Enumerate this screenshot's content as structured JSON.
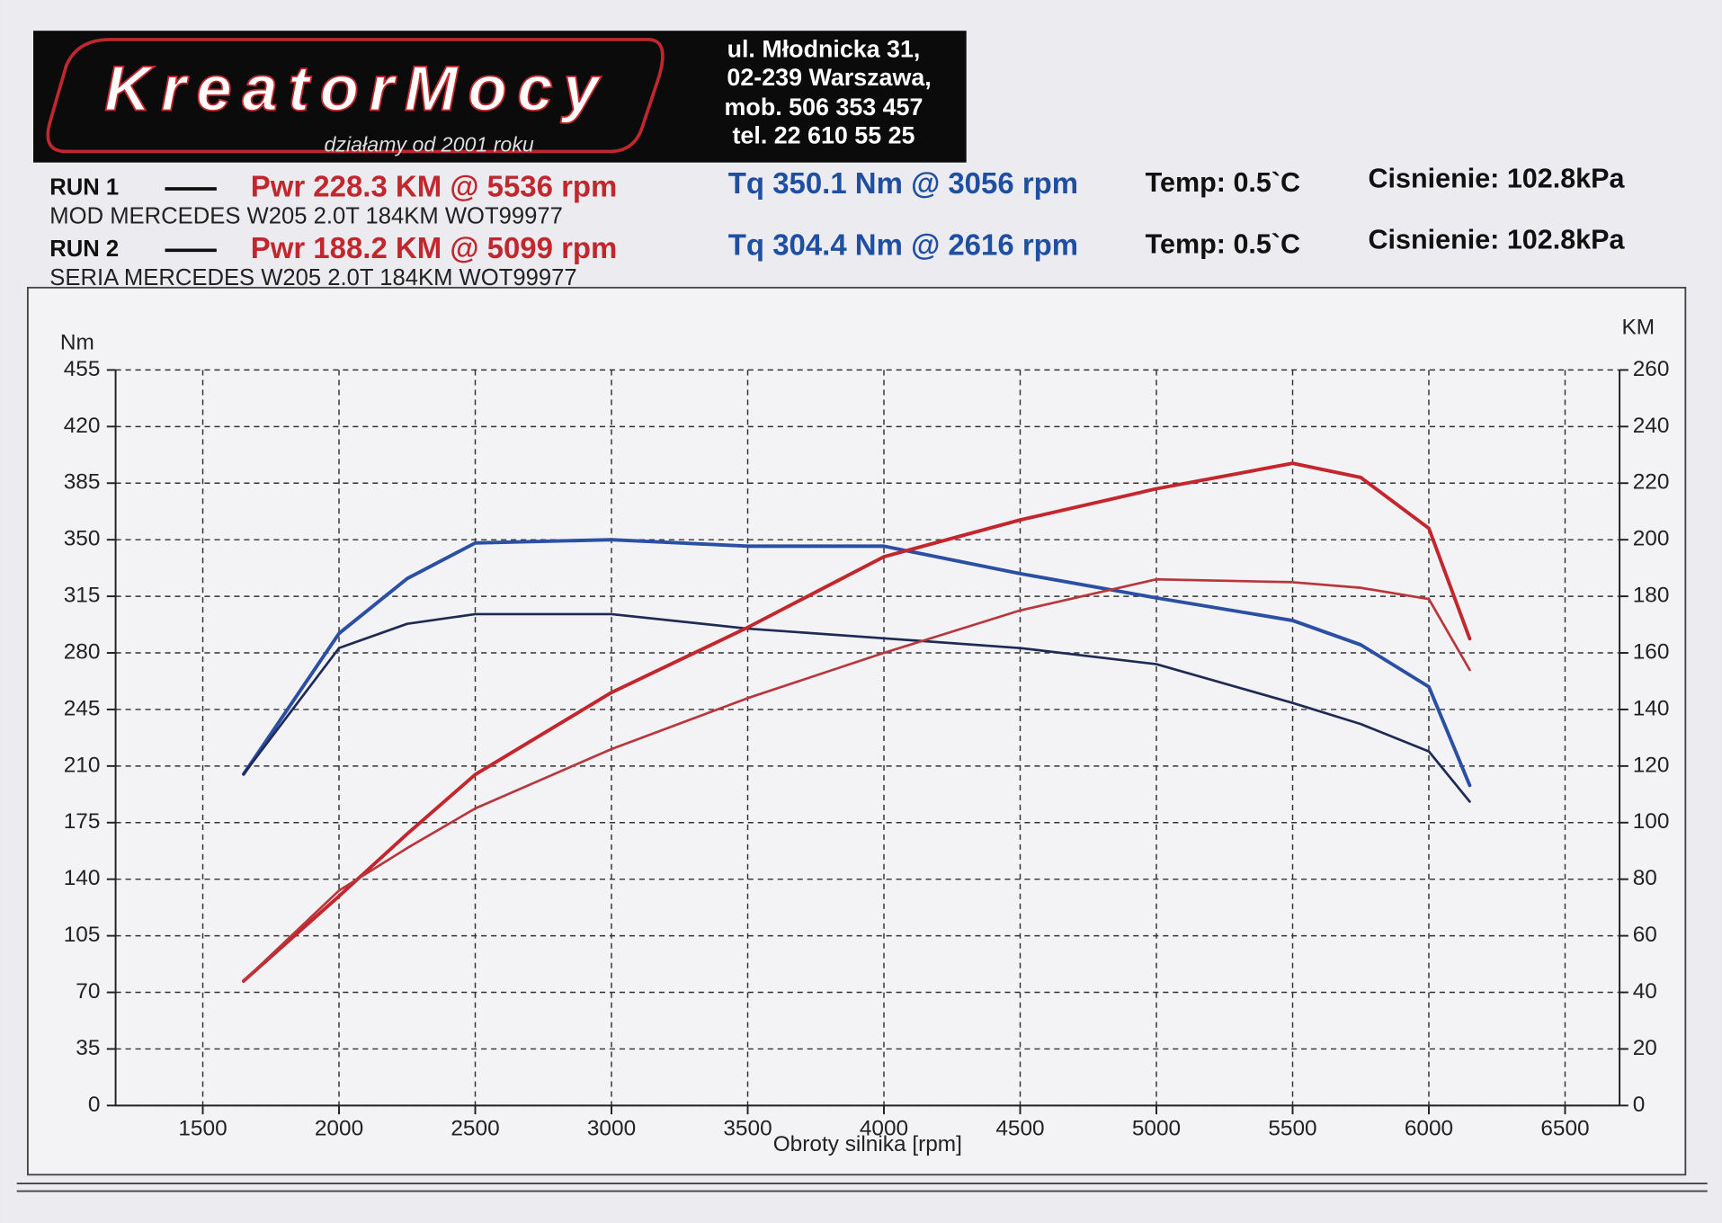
{
  "header": {
    "brand": "KreatorMocy",
    "tagline": "działamy od 2001 roku",
    "address": [
      "ul. Młodnicka 31,",
      "02-239  Warszawa,",
      "mob.  506 353 457",
      "tel.  22 610 55 25"
    ]
  },
  "runs": [
    {
      "label": "RUN 1",
      "power": "Pwr  228.3 KM @ 5536 rpm",
      "torque": "Tq 350.1 Nm @ 3056 rpm",
      "temp": "Temp: 0.5`C",
      "pressure": "Cisnienie: 102.8kPa",
      "description": "MOD MERCEDES W205 2.0T 184KM WOT99977"
    },
    {
      "label": "RUN 2",
      "power": "Pwr  188.2 KM @ 5099 rpm",
      "torque": "Tq 304.4 Nm @ 2616 rpm",
      "temp": "Temp: 0.5`C",
      "pressure": "Cisnienie: 102.8kPa",
      "description": "SERIA MERCEDES W205 2.0T 184KM WOT99977"
    }
  ],
  "chart_data": {
    "type": "line",
    "x_label": "Obroty silnika [rpm]",
    "y_label": "Nm",
    "y2_label": "KM",
    "x": [
      1650,
      2000,
      2250,
      2500,
      3000,
      3500,
      4000,
      4500,
      5000,
      5500,
      5750,
      6000,
      6150
    ],
    "series": [
      {
        "color": "#2b4fa3",
        "width": 3.2,
        "values": [
          205,
          292,
          326,
          348,
          350,
          346,
          346,
          329,
          314,
          300,
          285,
          259,
          198
        ]
      },
      {
        "color": "#1f2a55",
        "width": 2.2,
        "values": [
          205,
          283,
          298,
          304,
          304,
          295,
          289,
          283,
          273,
          249,
          236,
          219,
          188
        ]
      },
      {
        "color": "#c3262d",
        "width": 3.2,
        "axis": "y2",
        "values": [
          44,
          74,
          96,
          117,
          146,
          169,
          194,
          207,
          218,
          227,
          222,
          204,
          165
        ]
      },
      {
        "color": "#b8363c",
        "width": 2.2,
        "axis": "y2",
        "values": [
          44,
          76,
          91,
          105,
          126,
          144,
          160,
          175,
          186,
          185,
          183,
          179,
          154
        ]
      }
    ],
    "xlim": [
      1180,
      6700
    ],
    "xticks": [
      1500,
      2000,
      2500,
      3000,
      3500,
      4000,
      4500,
      5000,
      5500,
      6000,
      6500
    ],
    "ylim": [
      0,
      455
    ],
    "yticks": [
      0,
      35,
      70,
      105,
      140,
      175,
      210,
      245,
      280,
      315,
      350,
      385,
      420,
      455
    ],
    "y2lim": [
      0,
      260
    ],
    "y2ticks": [
      0,
      20,
      40,
      60,
      80,
      100,
      120,
      140,
      160,
      180,
      200,
      220,
      240,
      260
    ],
    "grid": true
  }
}
